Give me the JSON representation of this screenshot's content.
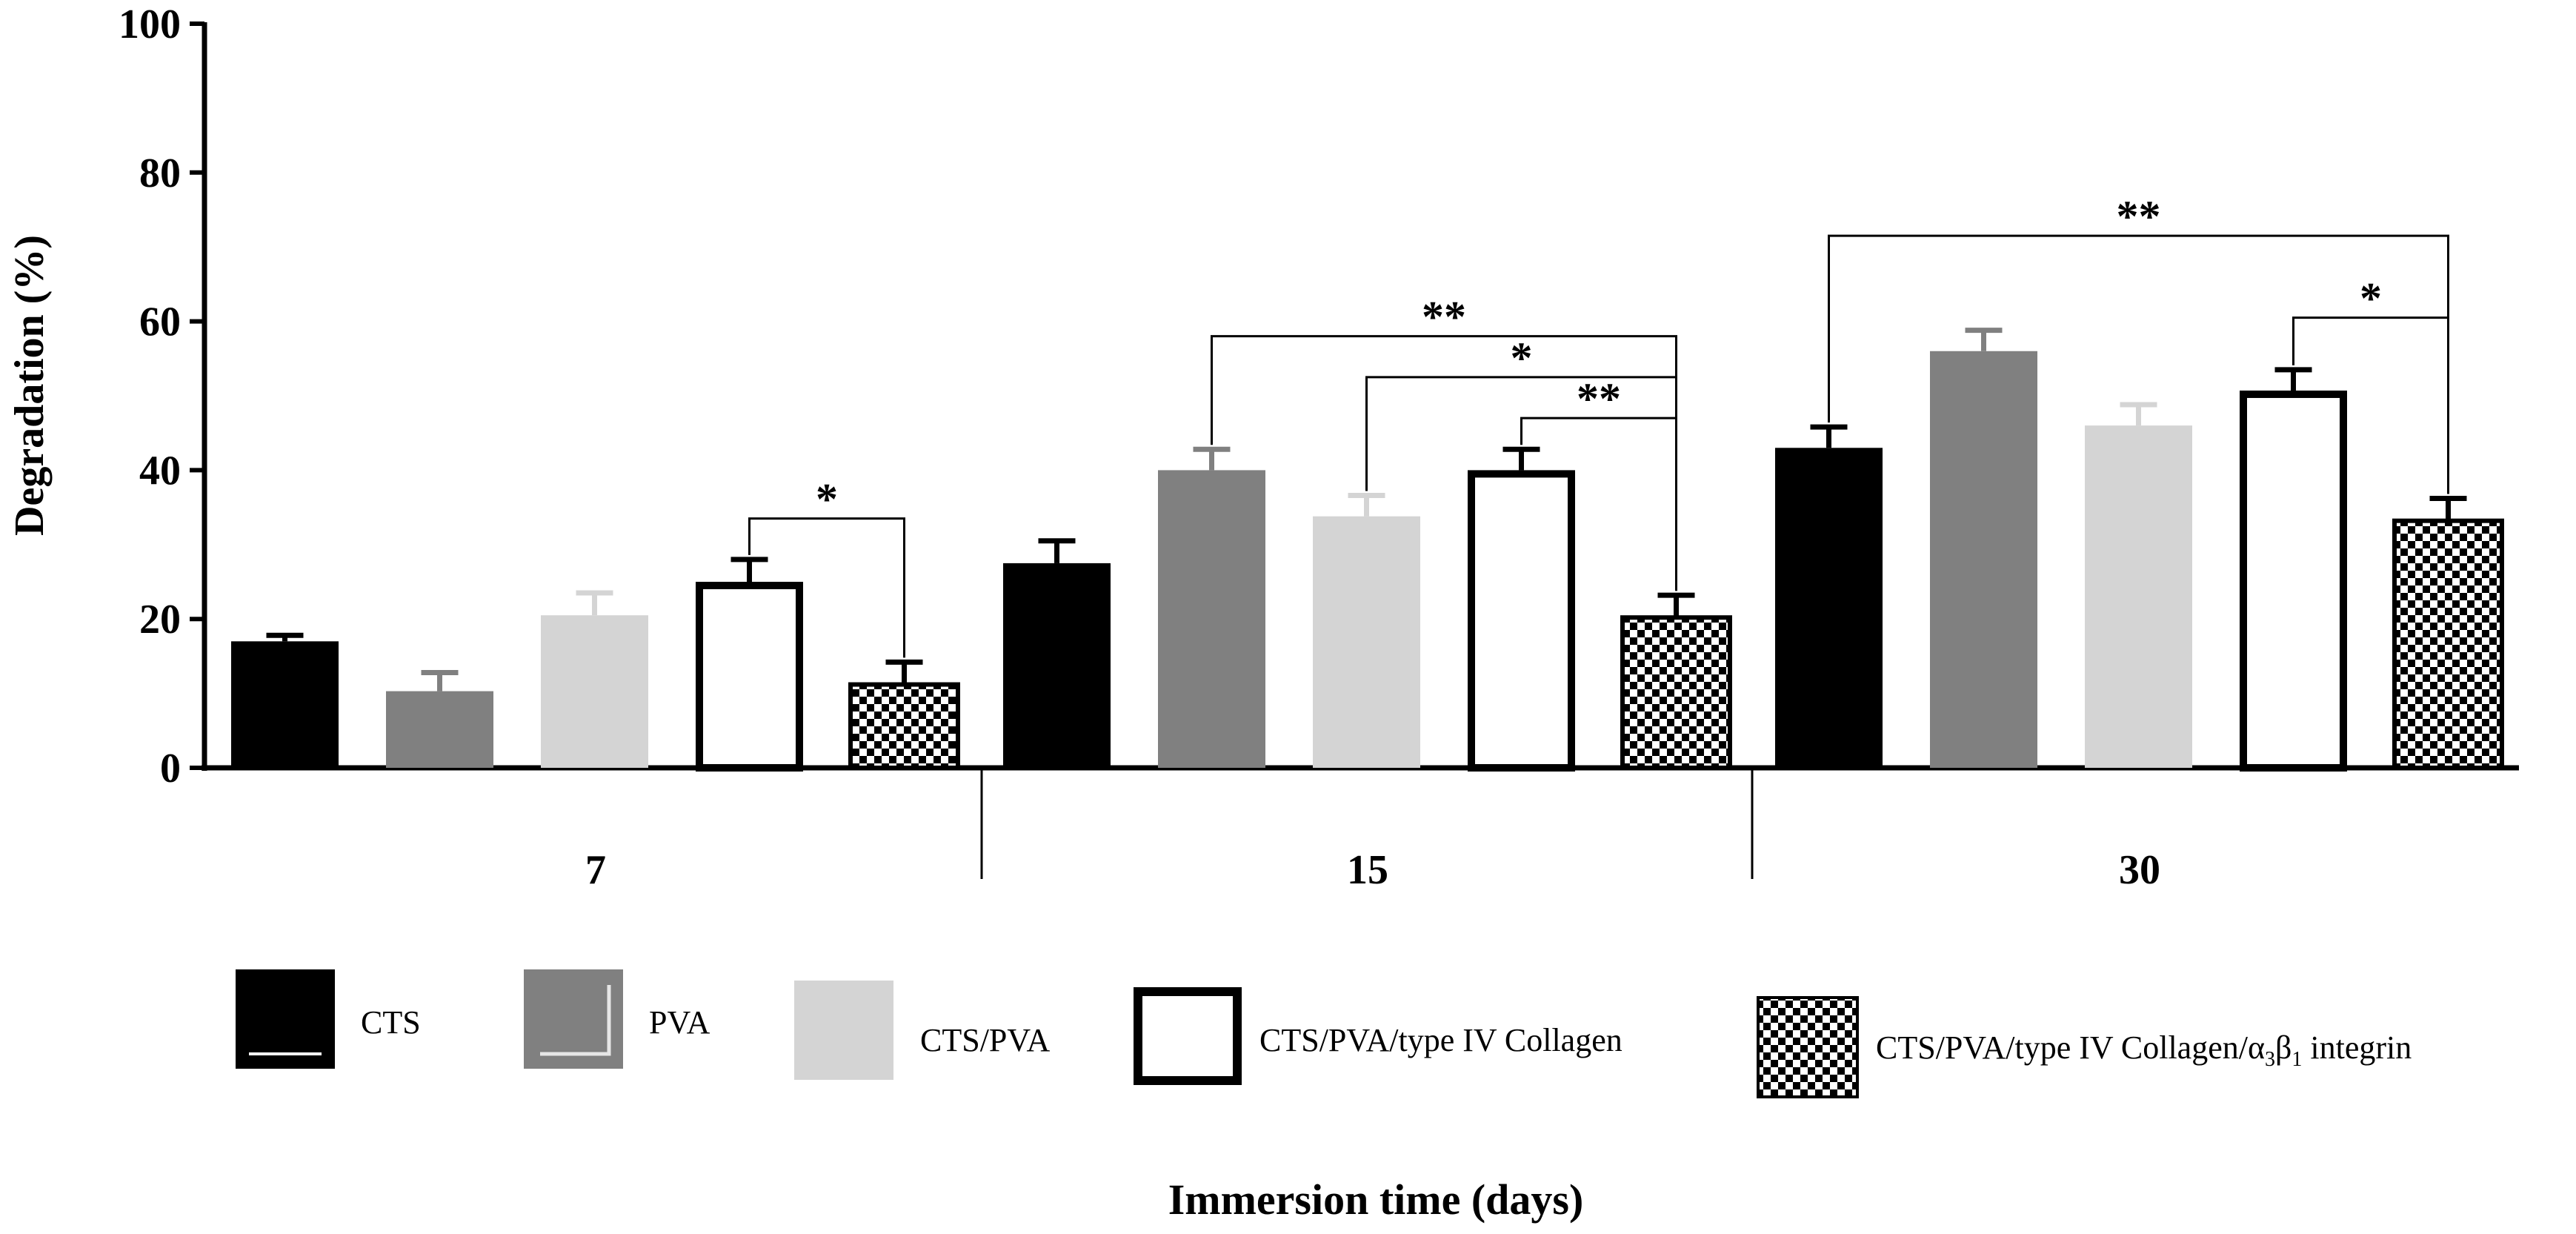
{
  "chart_data": {
    "type": "bar",
    "ylabel": "Degradation (%)",
    "xlabel": "Immersion time (days)",
    "ylim": [
      0,
      100
    ],
    "yticks": [
      0,
      20,
      40,
      60,
      80,
      100
    ],
    "categories": [
      "7",
      "15",
      "30"
    ],
    "series": [
      {
        "name": "CTS",
        "fill": "#000000",
        "pattern": "solid",
        "values": [
          17,
          27.5,
          43
        ],
        "errors": [
          0.8,
          3,
          2.8
        ]
      },
      {
        "name": "PVA",
        "fill": "#808080",
        "pattern": "solid",
        "values": [
          10.3,
          40,
          56
        ],
        "errors": [
          2.5,
          2.8,
          2.8
        ]
      },
      {
        "name": "CTS/PVA",
        "fill": "#d4d4d4",
        "pattern": "solid",
        "values": [
          20.5,
          33.8,
          46
        ],
        "errors": [
          3,
          2.8,
          2.8
        ]
      },
      {
        "name": "CTS/PVA/type IV Collagen",
        "fill": "#ffffff",
        "pattern": "solid",
        "values": [
          25,
          40,
          50.7
        ],
        "errors": [
          3,
          2.8,
          2.8
        ]
      },
      {
        "name": "CTS/PVA/type IV Collagen/α3β1 integrin",
        "fill": "#000000",
        "pattern": "checker",
        "values": [
          11.2,
          20.2,
          33.2
        ],
        "errors": [
          3,
          3,
          3
        ]
      }
    ],
    "significance": [
      {
        "group": 0,
        "from": 3,
        "to": 4,
        "label": "*",
        "level": 33.5
      },
      {
        "group": 1,
        "from": 1,
        "to": 4,
        "label": "**",
        "level": 58
      },
      {
        "group": 1,
        "from": 2,
        "to": 4,
        "label": "*",
        "level": 52.5
      },
      {
        "group": 1,
        "from": 3,
        "to": 4,
        "label": "**",
        "level": 47
      },
      {
        "group": 2,
        "from": 0,
        "to": 4,
        "label": "**",
        "level": 71.5
      },
      {
        "group": 2,
        "from": 3,
        "to": 4,
        "label": "*",
        "level": 60.5
      }
    ],
    "legend": {
      "position": "bottom",
      "entries": [
        {
          "label": "CTS"
        },
        {
          "label": "PVA"
        },
        {
          "label": "CTS/PVA"
        },
        {
          "label": "CTS/PVA/type IV Collagen"
        },
        {
          "label_prefix": "CTS/PVA/type IV Collagen/",
          "alpha": "α",
          "sub1": "3",
          "beta": "β",
          "sub2": "1",
          "label_suffix": " integrin"
        }
      ]
    }
  }
}
